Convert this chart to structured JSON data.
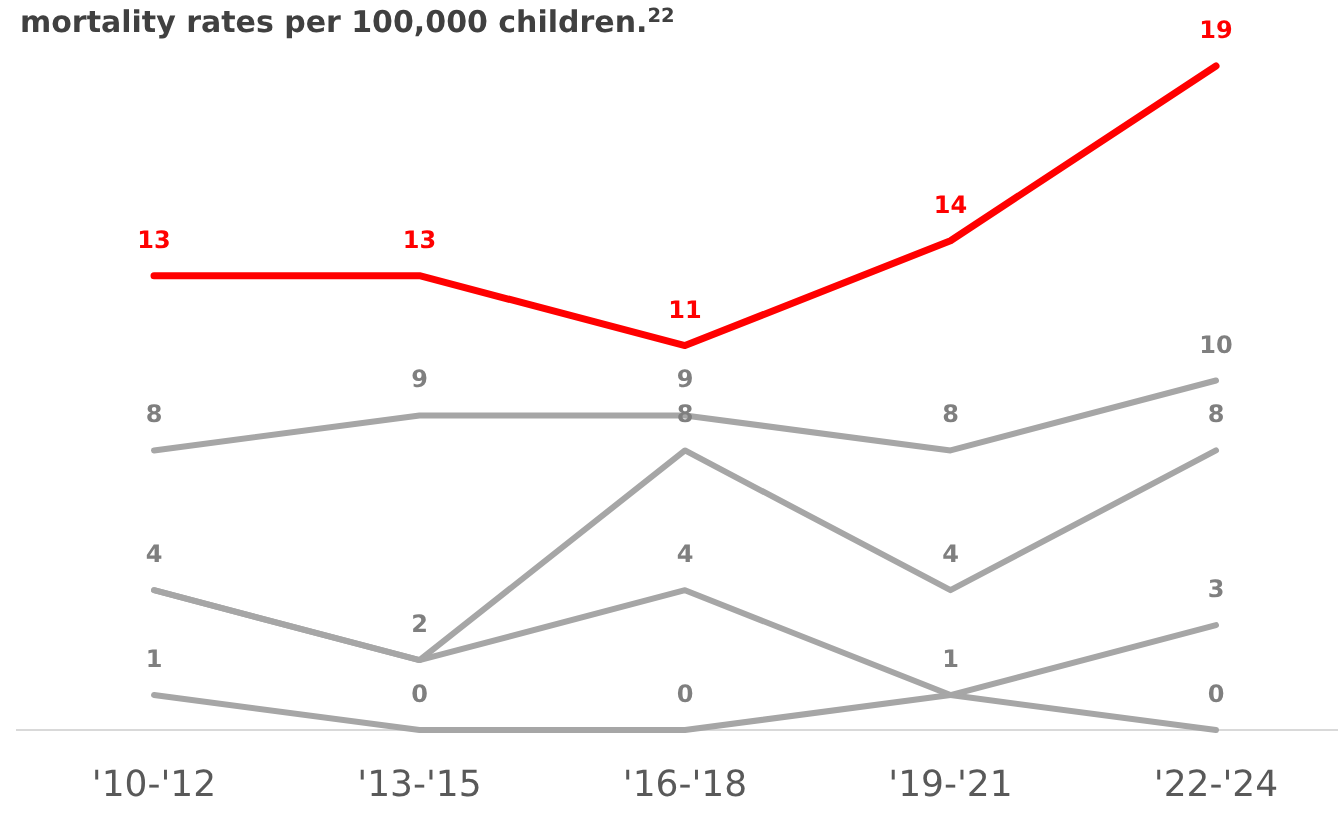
{
  "chart_data": {
    "type": "line",
    "title": "mortality rates per 100,000 children.$^{22}$",
    "categories": [
      "'10-'12",
      "'13-'15",
      "'16-'18",
      "'19-'21",
      "'22-'24"
    ],
    "series": [
      {
        "color": "#ff0000",
        "values": [
          13,
          13,
          11,
          14,
          19
        ],
        "value_labels": [
          "13",
          "13",
          "11",
          "14",
          "19"
        ]
      },
      {
        "color": "#a6a6a6",
        "values": [
          8,
          9,
          9,
          8,
          10
        ],
        "value_labels": [
          "8",
          "9",
          "9",
          "8",
          "10"
        ]
      },
      {
        "color": "#a6a6a6",
        "values": [
          4,
          2,
          8,
          4,
          8
        ],
        "value_labels": [
          "4",
          "2",
          "8",
          "4",
          "8"
        ]
      },
      {
        "color": "#a6a6a6",
        "values": [
          4,
          2,
          4,
          1,
          0
        ],
        "value_labels": [
          null,
          null,
          "4",
          "1",
          "0"
        ]
      },
      {
        "color": "#a6a6a6",
        "values": [
          1,
          0,
          0,
          1,
          3
        ],
        "value_labels": [
          "1",
          "0",
          "0",
          null,
          "3"
        ]
      }
    ],
    "marker": "none",
    "line_style": "solid"
  }
}
